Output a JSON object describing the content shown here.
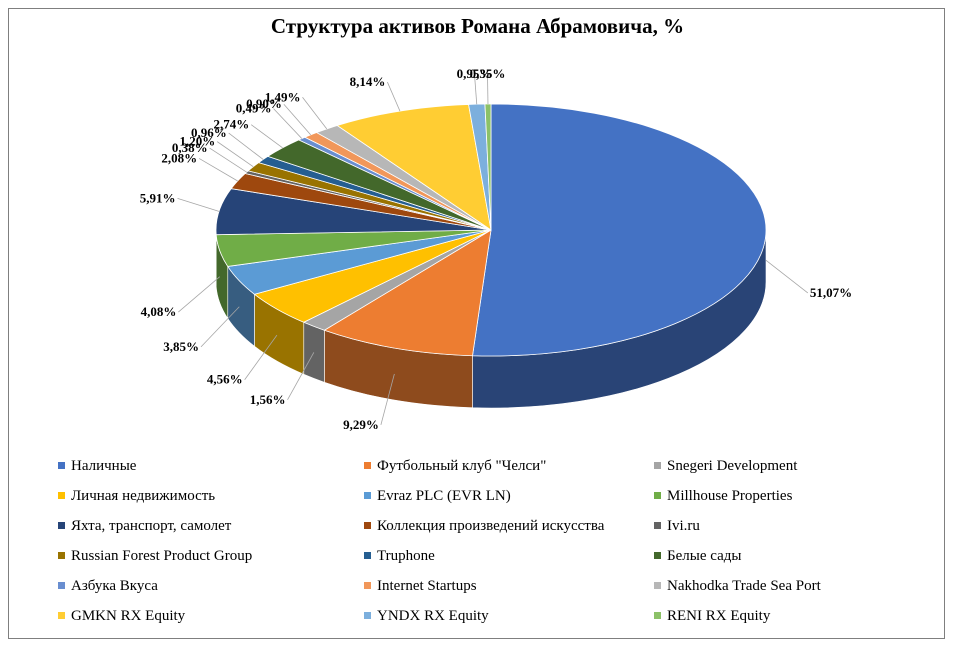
{
  "chart_data": {
    "type": "pie",
    "title": "Структура активов Романа Абрамовича, %",
    "categories": [
      "Наличные",
      "Футбольный клуб \"Челси\"",
      "Snegeri Development",
      "Личная недвижимость",
      "Evraz PLC (EVR LN)",
      "Millhouse Properties",
      "Яхта, транспорт, самолет",
      "Коллекция произведений искусства",
      "Ivi.ru",
      "Russian Forest Product Group",
      "Truphone",
      "Белые сады",
      "Азбука Вкуса",
      "Internet Startups",
      "Nakhodka Trade Sea Port",
      "GMKN RX Equity",
      "YNDX RX Equity",
      "RENI RX Equity"
    ],
    "values": [
      51.07,
      9.29,
      1.56,
      4.56,
      3.85,
      4.08,
      5.91,
      2.08,
      0.38,
      1.2,
      0.96,
      2.74,
      0.49,
      0.9,
      1.49,
      8.14,
      0.95,
      0.35
    ],
    "data_labels": [
      "51,07%",
      "9,29%",
      "1,56%",
      "4,56%",
      "3,85%",
      "4,08%",
      "5,91%",
      "2,08%",
      "0,38%",
      "1,20%",
      "0,96%",
      "2,74%",
      "0,49%",
      "0,90%",
      "1,49%",
      "8,14%",
      "0,95%",
      "0,35%"
    ],
    "colors": [
      "#4472c4",
      "#ed7d31",
      "#a5a5a5",
      "#ffc000",
      "#5b9bd5",
      "#70ad47",
      "#264478",
      "#9e480e",
      "#636363",
      "#997300",
      "#255e91",
      "#43682b",
      "#698ed0",
      "#f1975a",
      "#b7b7b7",
      "#ffcd33",
      "#7cafdd",
      "#8cc168"
    ],
    "legend_position": "bottom",
    "style": "3d"
  }
}
